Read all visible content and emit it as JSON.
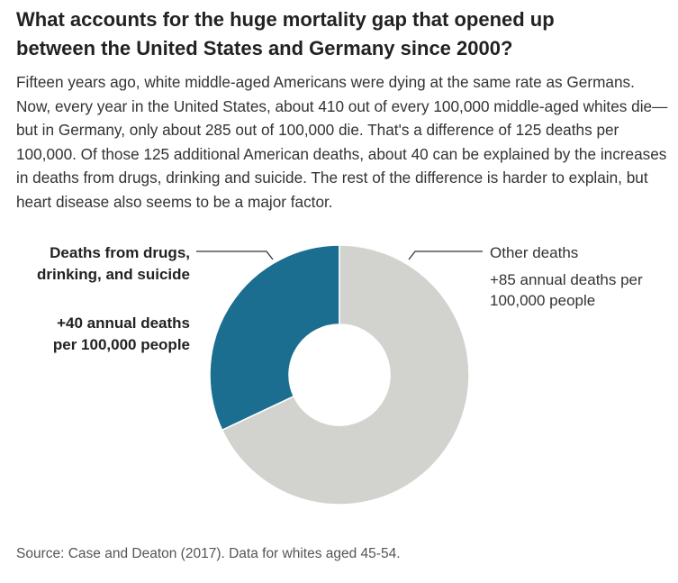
{
  "title_lines": [
    "What accounts for the huge mortality gap that opened up",
    "between the United States and Germany since 2000?"
  ],
  "paragraph": "Fifteen years ago, white middle-aged Americans were dying at the same rate as Germans. Now, every year in the United States, about 410 out of every 100,000 middle-aged whites die—but in Germany, only about 285 out of 100,000 die. That's a difference of 125 deaths per 100,000. Of those 125 additional American deaths, about 40 can be explained by the increases in deaths from drugs, drinking and suicide. The rest of the difference is harder to explain, but heart disease also seems to be a major factor.",
  "source": "Source: Case and Deaton (2017). Data for whites aged 45-54.",
  "chart_data": {
    "type": "pie",
    "variant": "donut",
    "total": 125,
    "slices": [
      {
        "name": "Deaths from drugs, drinking, and suicide",
        "value": 40,
        "color": "#1b6e8f",
        "label_lines": [
          "Deaths from drugs,",
          "drinking, and suicide"
        ],
        "value_lines": [
          "+40 annual deaths",
          "per 100,000 people"
        ]
      },
      {
        "name": "Other deaths",
        "value": 85,
        "color": "#d2d2cf",
        "label_lines": [
          "Other deaths"
        ],
        "value_lines": [
          "+85 annual deaths per",
          "100,000 people"
        ]
      }
    ]
  }
}
